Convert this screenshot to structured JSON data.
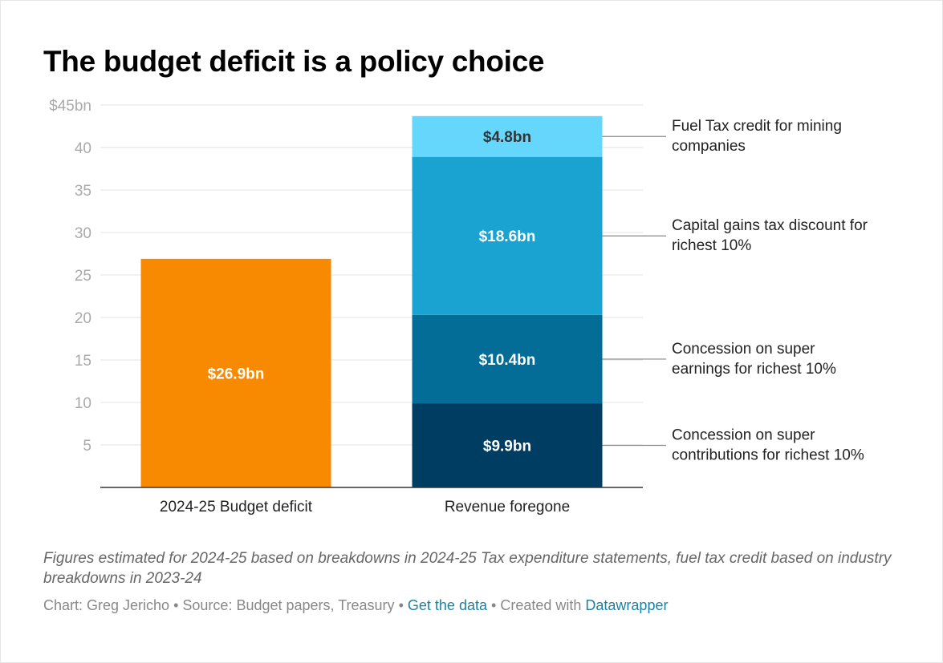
{
  "title": "The budget deficit is a policy choice",
  "note": "Figures estimated for 2024-25 based on breakdowns in 2024-25 Tax expenditure statements, fuel tax credit based on industry breakdowns in 2023-24",
  "credits": {
    "byline": "Chart: Greg Jericho",
    "separator": "•",
    "source": "Source: Budget papers, Treasury",
    "get_data_label": "Get the data",
    "created_with_label": "Created with",
    "datawrapper_label": "Datawrapper"
  },
  "colors": {
    "deficit": "#f78a00",
    "super_contributions": "#003d62",
    "super_earnings": "#036c97",
    "capital_gains": "#1aa3d0",
    "fuel_tax": "#65d7fd",
    "link": "#1d81a2",
    "grid": "#e3e3e3",
    "tick_text": "#aaaaaa"
  },
  "chart_data": {
    "type": "bar",
    "stacked": true,
    "categories": [
      "2024-25 Budget deficit",
      "Revenue foregone"
    ],
    "ylim": [
      0,
      45
    ],
    "yticks": [
      5,
      10,
      15,
      20,
      25,
      30,
      35,
      40,
      45
    ],
    "ytick_labels": [
      "5",
      "10",
      "15",
      "20",
      "25",
      "30",
      "35",
      "40",
      "$45bn"
    ],
    "grid": true,
    "series": [
      {
        "key": "deficit",
        "values": [
          26.9,
          0
        ],
        "labels": [
          "$26.9bn",
          ""
        ],
        "color": "#f78a00",
        "label_color": "#ffffff"
      },
      {
        "key": "super_contributions",
        "name": "Concession on super contributions for richest 10%",
        "values": [
          0,
          9.9
        ],
        "labels": [
          "",
          "$9.9bn"
        ],
        "color": "#003d62",
        "label_color": "#ffffff"
      },
      {
        "key": "super_earnings",
        "name": "Concession on super earnings for richest 10%",
        "values": [
          0,
          10.4
        ],
        "labels": [
          "",
          "$10.4bn"
        ],
        "color": "#036c97",
        "label_color": "#ffffff"
      },
      {
        "key": "capital_gains",
        "name": "Capital gains tax discount for richest 10%",
        "values": [
          0,
          18.6
        ],
        "labels": [
          "",
          "$18.6bn"
        ],
        "color": "#1aa3d0",
        "label_color": "#ffffff"
      },
      {
        "key": "fuel_tax",
        "name": "Fuel Tax credit for mining companies",
        "values": [
          0,
          4.8
        ],
        "labels": [
          "",
          "$4.8bn"
        ],
        "color": "#65d7fd",
        "label_color": "#333333"
      }
    ],
    "annotations": [
      {
        "series": "fuel_tax",
        "lines": [
          "Fuel Tax credit for mining",
          "companies"
        ]
      },
      {
        "series": "capital_gains",
        "lines": [
          "Capital gains tax discount for",
          "richest 10%"
        ]
      },
      {
        "series": "super_earnings",
        "lines": [
          "Concession on super",
          "earnings for richest 10%"
        ]
      },
      {
        "series": "super_contributions",
        "lines": [
          "Concession on super",
          "contributions for richest 10%"
        ]
      }
    ]
  }
}
